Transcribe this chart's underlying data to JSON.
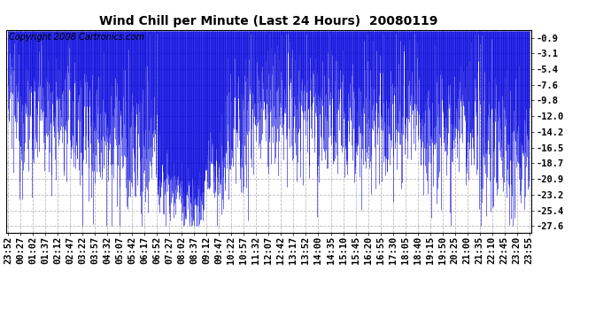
{
  "title": "Wind Chill per Minute (Last 24 Hours)  20080119",
  "copyright_text": "Copyright 2008 Cartronics.com",
  "y_ticks": [
    -0.9,
    -3.1,
    -5.4,
    -7.6,
    -9.8,
    -12.0,
    -14.2,
    -16.5,
    -18.7,
    -20.9,
    -23.2,
    -25.4,
    -27.6
  ],
  "y_min": -28.5,
  "y_max": 0.2,
  "line_color": "#0000dd",
  "bg_color": "#ffffff",
  "plot_bg_color": "#ffffff",
  "grid_color": "#bbbbbb",
  "title_fontsize": 10,
  "copyright_fontsize": 7,
  "tick_fontsize": 7.5
}
